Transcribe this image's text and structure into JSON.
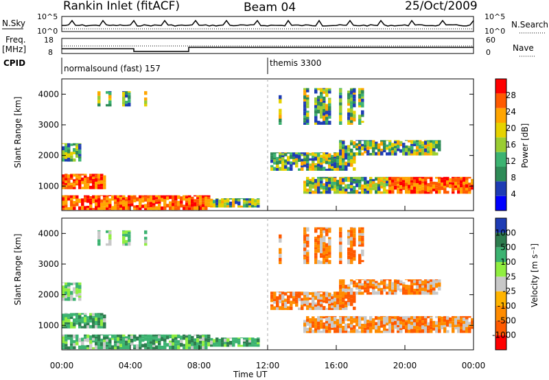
{
  "header": {
    "station": "Rankin Inlet (fitACF)",
    "beam": "Beam 04",
    "date": "25/Oct/2009"
  },
  "top_panels": {
    "nsky_label": "N.Sky",
    "nsky_ticks": [
      "10^5",
      "10^0"
    ],
    "nsearch_label": "N.Search",
    "nsearch_ticks": [
      "10^5",
      "10^0"
    ],
    "freq_label_1": "Freq.",
    "freq_label_2": "[MHz]",
    "freq_ticks": [
      "18",
      "8"
    ],
    "nave_label": "Nave",
    "nave_ticks": [
      "60",
      "0"
    ],
    "cpid_label": "CPID",
    "cpid_modes": [
      "normalsound (fast) 157",
      "themis 3300"
    ]
  },
  "colors": {
    "power_scale": [
      "#0000ff",
      "#1e3cb4",
      "#2e8b57",
      "#3cb371",
      "#9acd32",
      "#e6d200",
      "#ffa500",
      "#ff5a00",
      "#ff0000"
    ],
    "velocity_scale": [
      "#ff0000",
      "#ff5a00",
      "#ff8c00",
      "#ffb400",
      "#c8c8c8",
      "#90ee40",
      "#3cb371",
      "#2e7d4f",
      "#1e3cb4"
    ]
  },
  "chart_data": [
    {
      "type": "heatmap",
      "name": "power",
      "ylabel": "Slant Range [km]",
      "xlabel": "Time UT",
      "x_ticks": [
        "00:00",
        "04:00",
        "08:00",
        "12:00",
        "16:00",
        "20:00",
        "00:00"
      ],
      "y_ticks": [
        1000,
        2000,
        3000,
        4000
      ],
      "ylim": [
        200,
        4500
      ],
      "xlim_hours": [
        0,
        24
      ],
      "colorbar_label": "Power [dB]",
      "colorbar_ticks": [
        4,
        8,
        12,
        16,
        20,
        24,
        28
      ]
    },
    {
      "type": "heatmap",
      "name": "velocity",
      "ylabel": "Slant Range [km]",
      "xlabel": "Time UT",
      "x_ticks": [
        "00:00",
        "04:00",
        "08:00",
        "12:00",
        "16:00",
        "20:00",
        "00:00"
      ],
      "y_ticks": [
        1000,
        2000,
        3000,
        4000
      ],
      "ylim": [
        200,
        4500
      ],
      "xlim_hours": [
        0,
        24
      ],
      "colorbar_label": "Velocity [m s⁻¹]",
      "colorbar_ticks": [
        1000,
        500,
        100,
        25,
        -25,
        -100,
        -500,
        -1000
      ]
    }
  ],
  "xaxis_title": "Time UT"
}
